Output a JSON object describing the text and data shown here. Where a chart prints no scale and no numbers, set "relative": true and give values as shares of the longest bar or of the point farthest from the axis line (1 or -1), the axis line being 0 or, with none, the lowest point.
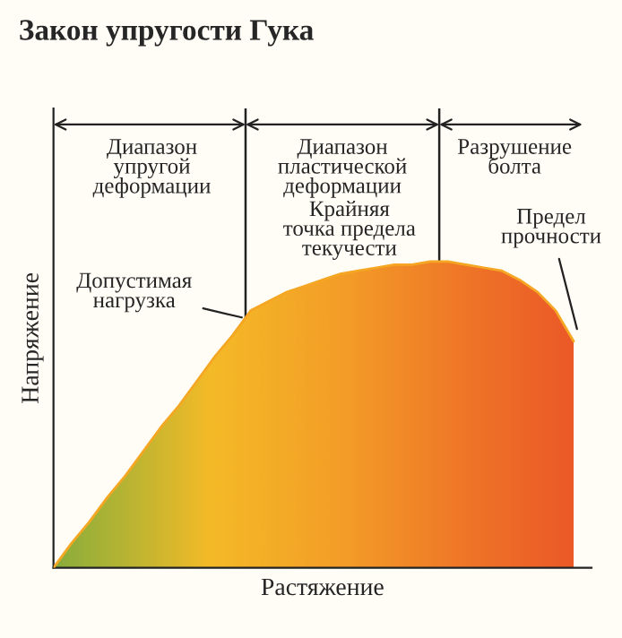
{
  "chart_data": {
    "type": "area",
    "relative": true,
    "title": "Закон упругости Гука",
    "xlabel": "Растяжение",
    "ylabel": "Напряжение",
    "categories": [
      null,
      null,
      null,
      null,
      null,
      null,
      null,
      null,
      null,
      null,
      null,
      null,
      null,
      null,
      null,
      null,
      null,
      null,
      null,
      null,
      null,
      null,
      null,
      null,
      null,
      null,
      null,
      null,
      null,
      null
    ],
    "series": [
      {
        "color": "#f5a623",
        "values": [
          0,
          0.08,
          0.15,
          0.23,
          0.3,
          0.38,
          0.46,
          0.53,
          0.61,
          0.69,
          0.76,
          0.84,
          0.87,
          0.9,
          0.92,
          0.94,
          0.96,
          0.97,
          0.98,
          0.99,
          0.99,
          1,
          1,
          0.99,
          0.98,
          0.97,
          0.94,
          0.9,
          0.84,
          0.74
        ]
      }
    ],
    "annotations": [
      "Диапазон\nупругой\nдеформации",
      "Диапазон\nпластической\nдеформации",
      "Разрушение\nболта",
      "Допустимая\nнагрузка",
      "Крайняя\nточка предела\nтекучести",
      "Предел\nпрочности"
    ]
  }
}
